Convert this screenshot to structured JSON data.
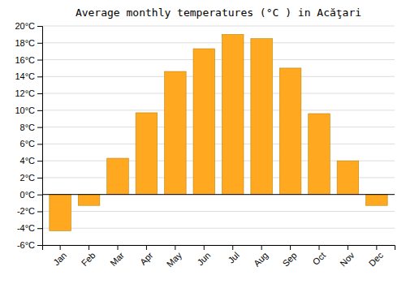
{
  "chart_data": {
    "type": "bar",
    "title": "Average monthly temperatures (°C ) in Acăţari",
    "categories": [
      "Jan",
      "Feb",
      "Mar",
      "Apr",
      "May",
      "Jun",
      "Jul",
      "Aug",
      "Sep",
      "Oct",
      "Nov",
      "Dec"
    ],
    "values": [
      -4.3,
      -1.3,
      4.3,
      9.7,
      14.6,
      17.3,
      19.0,
      18.5,
      15.0,
      9.6,
      4.0,
      -1.3
    ],
    "color": "#FFA820",
    "ylim": [
      -6,
      20
    ],
    "yticks": [
      {
        "value": -6,
        "label": "-6°C"
      },
      {
        "value": -4,
        "label": "-4°C"
      },
      {
        "value": -2,
        "label": "-2°C"
      },
      {
        "value": 0,
        "label": "0°C"
      },
      {
        "value": 2,
        "label": "2°C"
      },
      {
        "value": 4,
        "label": "4°C"
      },
      {
        "value": 6,
        "label": "6°C"
      },
      {
        "value": 8,
        "label": "8°C"
      },
      {
        "value": 10,
        "label": "10°C"
      },
      {
        "value": 12,
        "label": "12°C"
      },
      {
        "value": 14,
        "label": "14°C"
      },
      {
        "value": 16,
        "label": "16°C"
      },
      {
        "value": 18,
        "label": "18°C"
      },
      {
        "value": 20,
        "label": "20°C"
      }
    ],
    "grid": true
  }
}
